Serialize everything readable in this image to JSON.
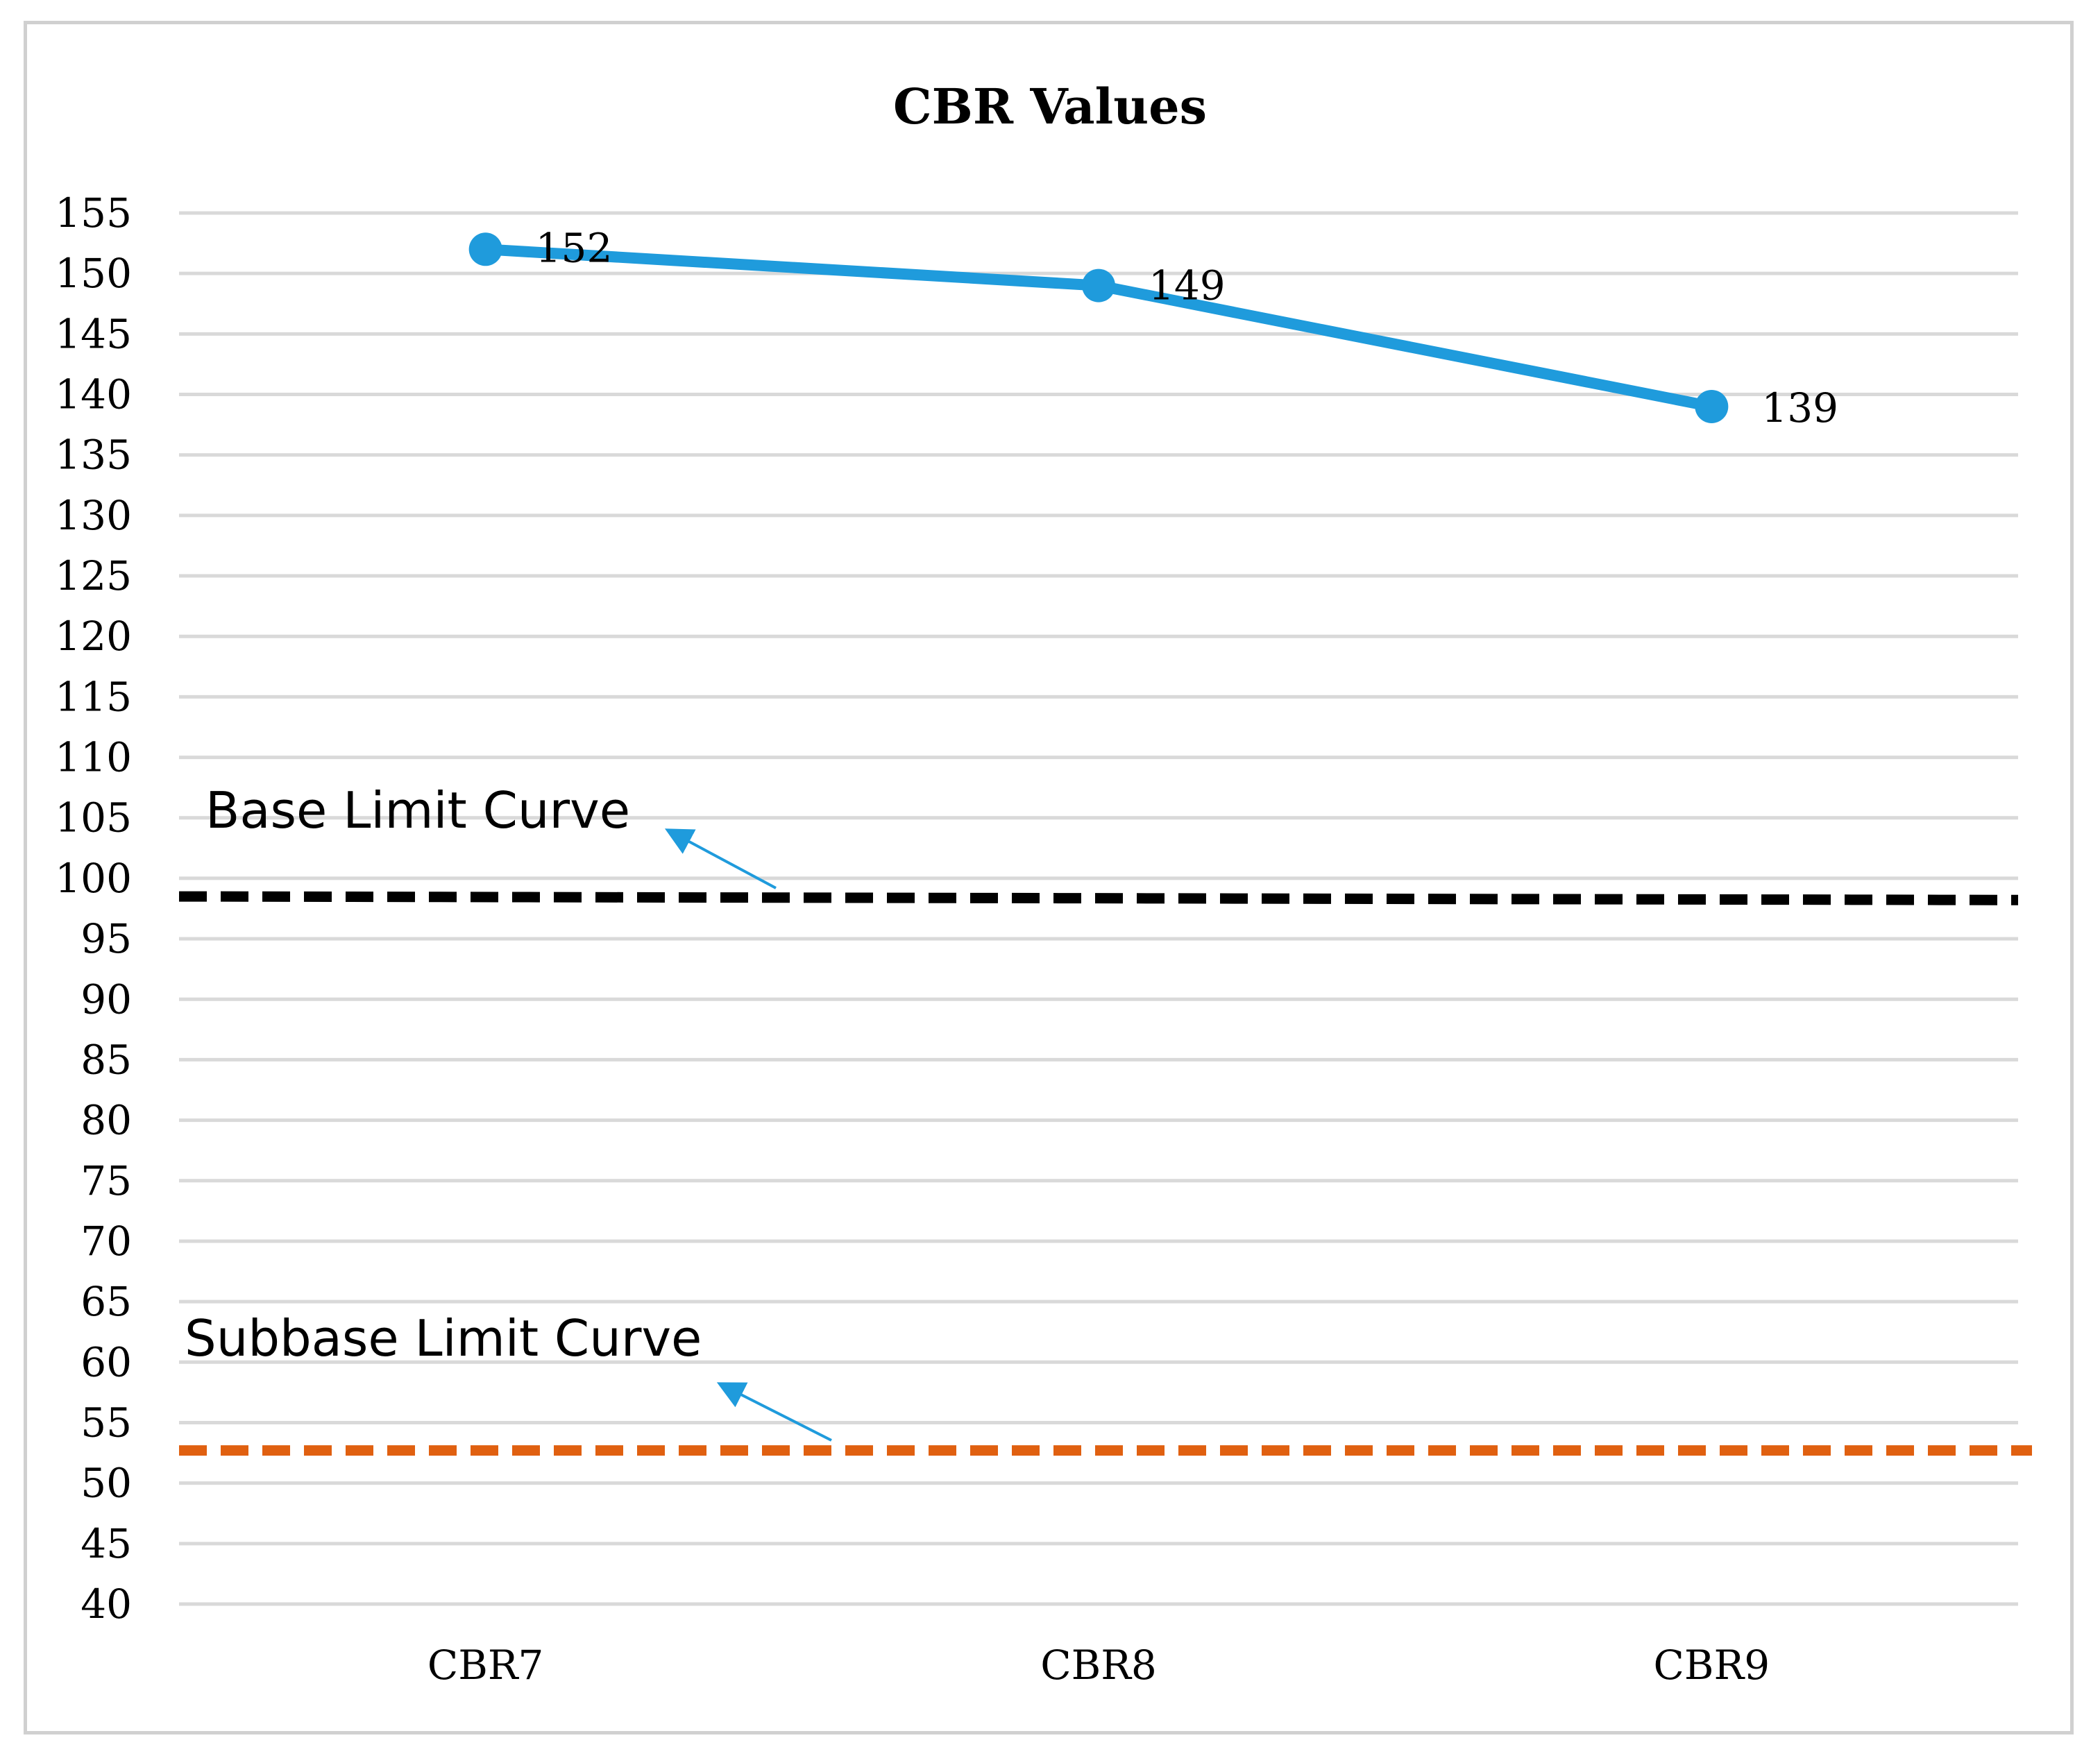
{
  "chart_data": {
    "type": "line",
    "title": "CBR Values",
    "xlabel": "",
    "ylabel": "",
    "categories": [
      "CBR7",
      "CBR8",
      "CBR9"
    ],
    "ylim": [
      40,
      155
    ],
    "ytick_step": 5,
    "grid": true,
    "series": [
      {
        "name": "CBR",
        "values": [
          152,
          149,
          139
        ],
        "color": "#1f9bdc",
        "data_labels": [
          "152",
          "149",
          "139"
        ]
      }
    ],
    "reference_lines": [
      {
        "name": "Base Limit Curve",
        "y_start": 98.5,
        "y_end": 98.2,
        "color": "#000000",
        "style": "dashed"
      },
      {
        "name": "Subbase Limit Curve",
        "y_start": 52.7,
        "y_end": 52.7,
        "color": "#e06010",
        "style": "dashed"
      }
    ],
    "annotations": [
      {
        "text": "Base Limit Curve",
        "points_to": "Base Limit Curve",
        "arrow_color": "#1f9bdc"
      },
      {
        "text": "Subbase Limit Curve",
        "points_to": "Subbase Limit Curve",
        "arrow_color": "#1f9bdc"
      }
    ]
  }
}
